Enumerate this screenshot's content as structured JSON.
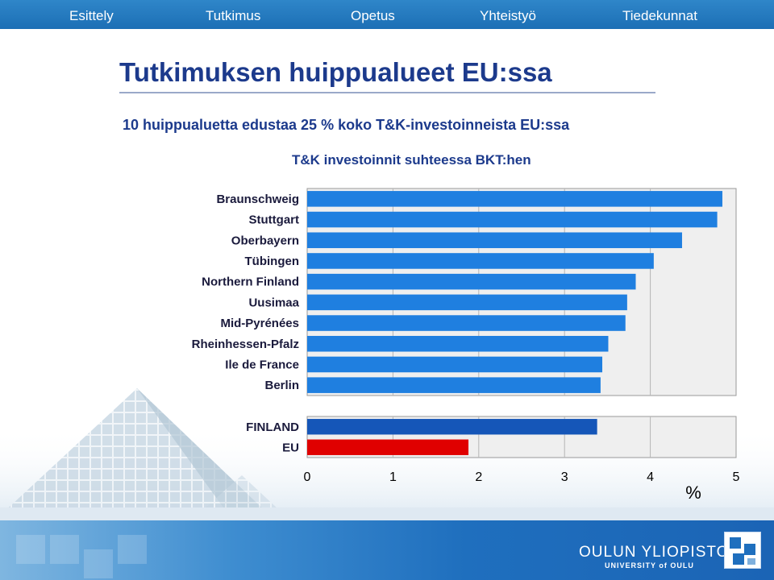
{
  "nav": {
    "items": [
      "Esittely",
      "Tutkimus",
      "Opetus",
      "Yhteistyö",
      "Tiedekunnat"
    ]
  },
  "page": {
    "title": "Tutkimuksen huippualueet EU:ssa",
    "subtitle": "10 huippualuetta edustaa 25 % koko T&K-investoinneista EU:ssa"
  },
  "footer": {
    "logo_name": "OULUN YLIOPISTO",
    "logo_sub": "UNIVERSITY of OULU"
  },
  "colors": {
    "nav": "#1f73b9",
    "title": "#1c3a8c",
    "bar_regions": "#1f7fe0",
    "bar_finland": "#1556b8",
    "bar_eu": "#e00000",
    "plot_bg": "#efefef"
  },
  "chart_data": {
    "type": "bar",
    "orientation": "horizontal",
    "title": "T&K investoinnit suhteessa BKT:hen",
    "unit": "%",
    "xlim": [
      0,
      5
    ],
    "xticks": [
      "0",
      "1",
      "2",
      "3",
      "4",
      "5"
    ],
    "grid": true,
    "groups": [
      {
        "name": "regions",
        "categories": [
          "Braunschweig",
          "Stuttgart",
          "Oberbayern",
          "Tübingen",
          "Northern Finland",
          "Uusimaa",
          "Mid-Pyrénées",
          "Rheinhessen-Pfalz",
          "Ile de France",
          "Berlin"
        ],
        "values": [
          4.84,
          4.78,
          4.37,
          4.04,
          3.83,
          3.73,
          3.71,
          3.51,
          3.44,
          3.42
        ]
      },
      {
        "name": "comparison",
        "categories": [
          "FINLAND",
          "EU"
        ],
        "values": [
          3.38,
          1.88
        ]
      }
    ]
  }
}
